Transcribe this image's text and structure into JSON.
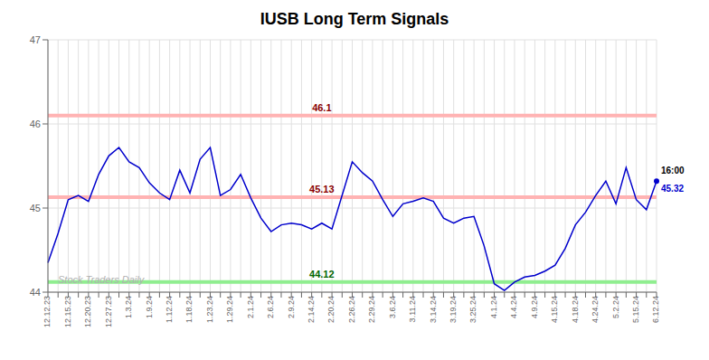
{
  "chart_data": {
    "type": "line",
    "title": "IUSB Long Term Signals",
    "categories": [
      "12.12.23",
      null,
      "12.15.23",
      null,
      "12.20.23",
      null,
      "12.27.23",
      null,
      "1.3.24",
      null,
      "1.9.24",
      null,
      "1.12.24",
      null,
      "1.18.24",
      null,
      "1.23.24",
      null,
      "1.29.24",
      null,
      "2.1.24",
      null,
      "2.6.24",
      null,
      "2.9.24",
      null,
      "2.14.24",
      null,
      "2.20.24",
      null,
      "2.26.24",
      null,
      "2.29.24",
      null,
      "3.6.24",
      null,
      "3.11.24",
      null,
      "3.14.24",
      null,
      "3.19.24",
      null,
      "3.25.24",
      null,
      "4.1.24",
      null,
      "4.4.24",
      null,
      "4.9.24",
      null,
      "4.15.24",
      null,
      "4.18.24",
      null,
      "4.24.24",
      null,
      "5.2.24",
      null,
      "5.15.24",
      null,
      "6.12.24"
    ],
    "values": [
      44.35,
      44.7,
      45.1,
      45.15,
      45.08,
      45.4,
      45.62,
      45.72,
      45.55,
      45.48,
      45.3,
      45.18,
      45.1,
      45.45,
      45.18,
      45.58,
      45.72,
      45.15,
      45.22,
      45.4,
      45.12,
      44.88,
      44.72,
      44.8,
      44.82,
      44.8,
      44.75,
      44.82,
      44.75,
      45.15,
      45.55,
      45.42,
      45.32,
      45.1,
      44.9,
      45.05,
      45.08,
      45.12,
      45.08,
      44.88,
      44.82,
      44.88,
      44.9,
      44.55,
      44.1,
      44.02,
      44.12,
      44.18,
      44.2,
      44.25,
      44.32,
      44.52,
      44.8,
      44.95,
      45.15,
      45.32,
      45.05,
      45.48,
      45.1,
      44.98,
      45.32
    ],
    "color": "#0000cc",
    "ylim": [
      44.0,
      47.0
    ],
    "yticks": [
      44,
      45,
      46,
      47
    ],
    "grid": true,
    "reference_lines": [
      {
        "value": 46.1,
        "color": "#ffb3b3",
        "label_color": "#8b0000"
      },
      {
        "value": 45.13,
        "color": "#ffb3b3",
        "label_color": "#8b0000"
      },
      {
        "value": 44.12,
        "color": "#90ee90",
        "label_color": "#006600"
      }
    ],
    "end_label": "16:00",
    "end_value": 45.32,
    "end_value_color": "#0000cc",
    "watermark": "Stock Traders Daily",
    "watermark_color": "#b0b0b0"
  }
}
